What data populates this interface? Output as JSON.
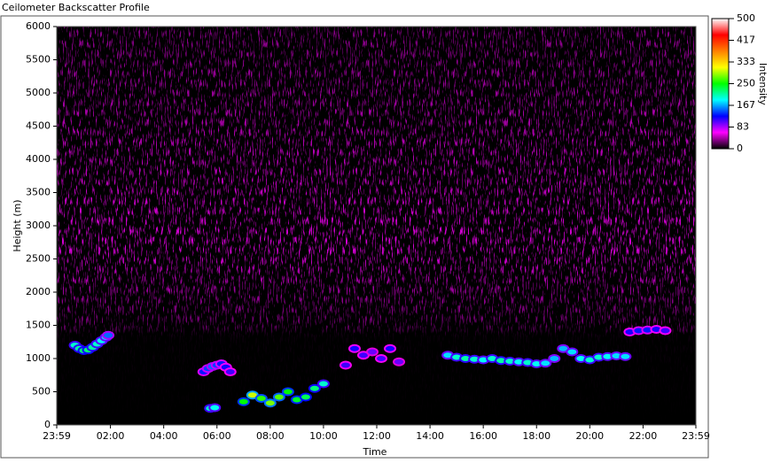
{
  "chart_data": {
    "type": "intensity",
    "title": "Ceilometer Backscatter Profile",
    "x_label": "Time",
    "y_label": "Height (m)",
    "z_label": "Intensity",
    "xlim": [
      -1,
      1439
    ],
    "xticks": [
      {
        "value": -1,
        "label": "23:59"
      },
      {
        "value": 120,
        "label": "02:00"
      },
      {
        "value": 240,
        "label": "04:00"
      },
      {
        "value": 360,
        "label": "06:00"
      },
      {
        "value": 480,
        "label": "08:00"
      },
      {
        "value": 600,
        "label": "10:00"
      },
      {
        "value": 720,
        "label": "12:00"
      },
      {
        "value": 840,
        "label": "14:00"
      },
      {
        "value": 960,
        "label": "16:00"
      },
      {
        "value": 1080,
        "label": "18:00"
      },
      {
        "value": 1200,
        "label": "20:00"
      },
      {
        "value": 1320,
        "label": "22:00"
      },
      {
        "value": 1439,
        "label": "23:59"
      }
    ],
    "ylim": [
      0,
      6000
    ],
    "yticks": [
      0,
      500,
      1000,
      1500,
      2000,
      2500,
      3000,
      3500,
      4000,
      4500,
      5000,
      5500,
      6000
    ],
    "zlim": [
      0,
      500
    ],
    "zticks": [
      0,
      {
        "value": 83.33,
        "label": "83"
      },
      {
        "value": 166.67,
        "label": "167"
      },
      250,
      {
        "value": 333.33,
        "label": "333"
      },
      {
        "value": 416.67,
        "label": "417"
      },
      500
    ],
    "colormap": [
      "#000000",
      "#ff00ff",
      "#0000ff",
      "#00ffff",
      "#00ff00",
      "#ffff00",
      "#ff8000",
      "#ff0000",
      "#ffffff"
    ],
    "x": [
      40,
      50,
      60,
      70,
      80,
      90,
      100,
      110,
      115,
      330,
      340,
      350,
      360,
      370,
      380,
      390,
      345,
      355,
      420,
      440,
      460,
      480,
      500,
      520,
      540,
      560,
      580,
      600,
      650,
      670,
      690,
      710,
      730,
      750,
      770,
      880,
      900,
      920,
      940,
      960,
      980,
      1000,
      1020,
      1040,
      1060,
      1080,
      1100,
      1120,
      1140,
      1160,
      1180,
      1200,
      1220,
      1240,
      1260,
      1280,
      1290,
      1310,
      1330,
      1350,
      1370
    ],
    "y": [
      1200,
      1150,
      1120,
      1130,
      1170,
      1220,
      1270,
      1320,
      1350,
      800,
      850,
      880,
      900,
      920,
      870,
      800,
      250,
      260,
      350,
      450,
      400,
      330,
      420,
      500,
      380,
      420,
      550,
      620,
      900,
      1150,
      1050,
      1100,
      1000,
      1150,
      950,
      1050,
      1020,
      1000,
      990,
      980,
      1000,
      970,
      960,
      950,
      940,
      920,
      930,
      1000,
      1150,
      1100,
      1000,
      980,
      1020,
      1030,
      1040,
      1030,
      1400,
      1420,
      1430,
      1440,
      1420
    ],
    "z": [
      200,
      210,
      220,
      220,
      210,
      200,
      190,
      180,
      150,
      130,
      140,
      150,
      140,
      130,
      120,
      110,
      200,
      190,
      250,
      300,
      260,
      280,
      270,
      250,
      240,
      230,
      220,
      200,
      110,
      120,
      110,
      100,
      110,
      120,
      100,
      180,
      200,
      210,
      200,
      190,
      200,
      210,
      200,
      190,
      200,
      190,
      180,
      170,
      170,
      180,
      190,
      200,
      200,
      190,
      180,
      180,
      120,
      130,
      130,
      120,
      110
    ]
  }
}
